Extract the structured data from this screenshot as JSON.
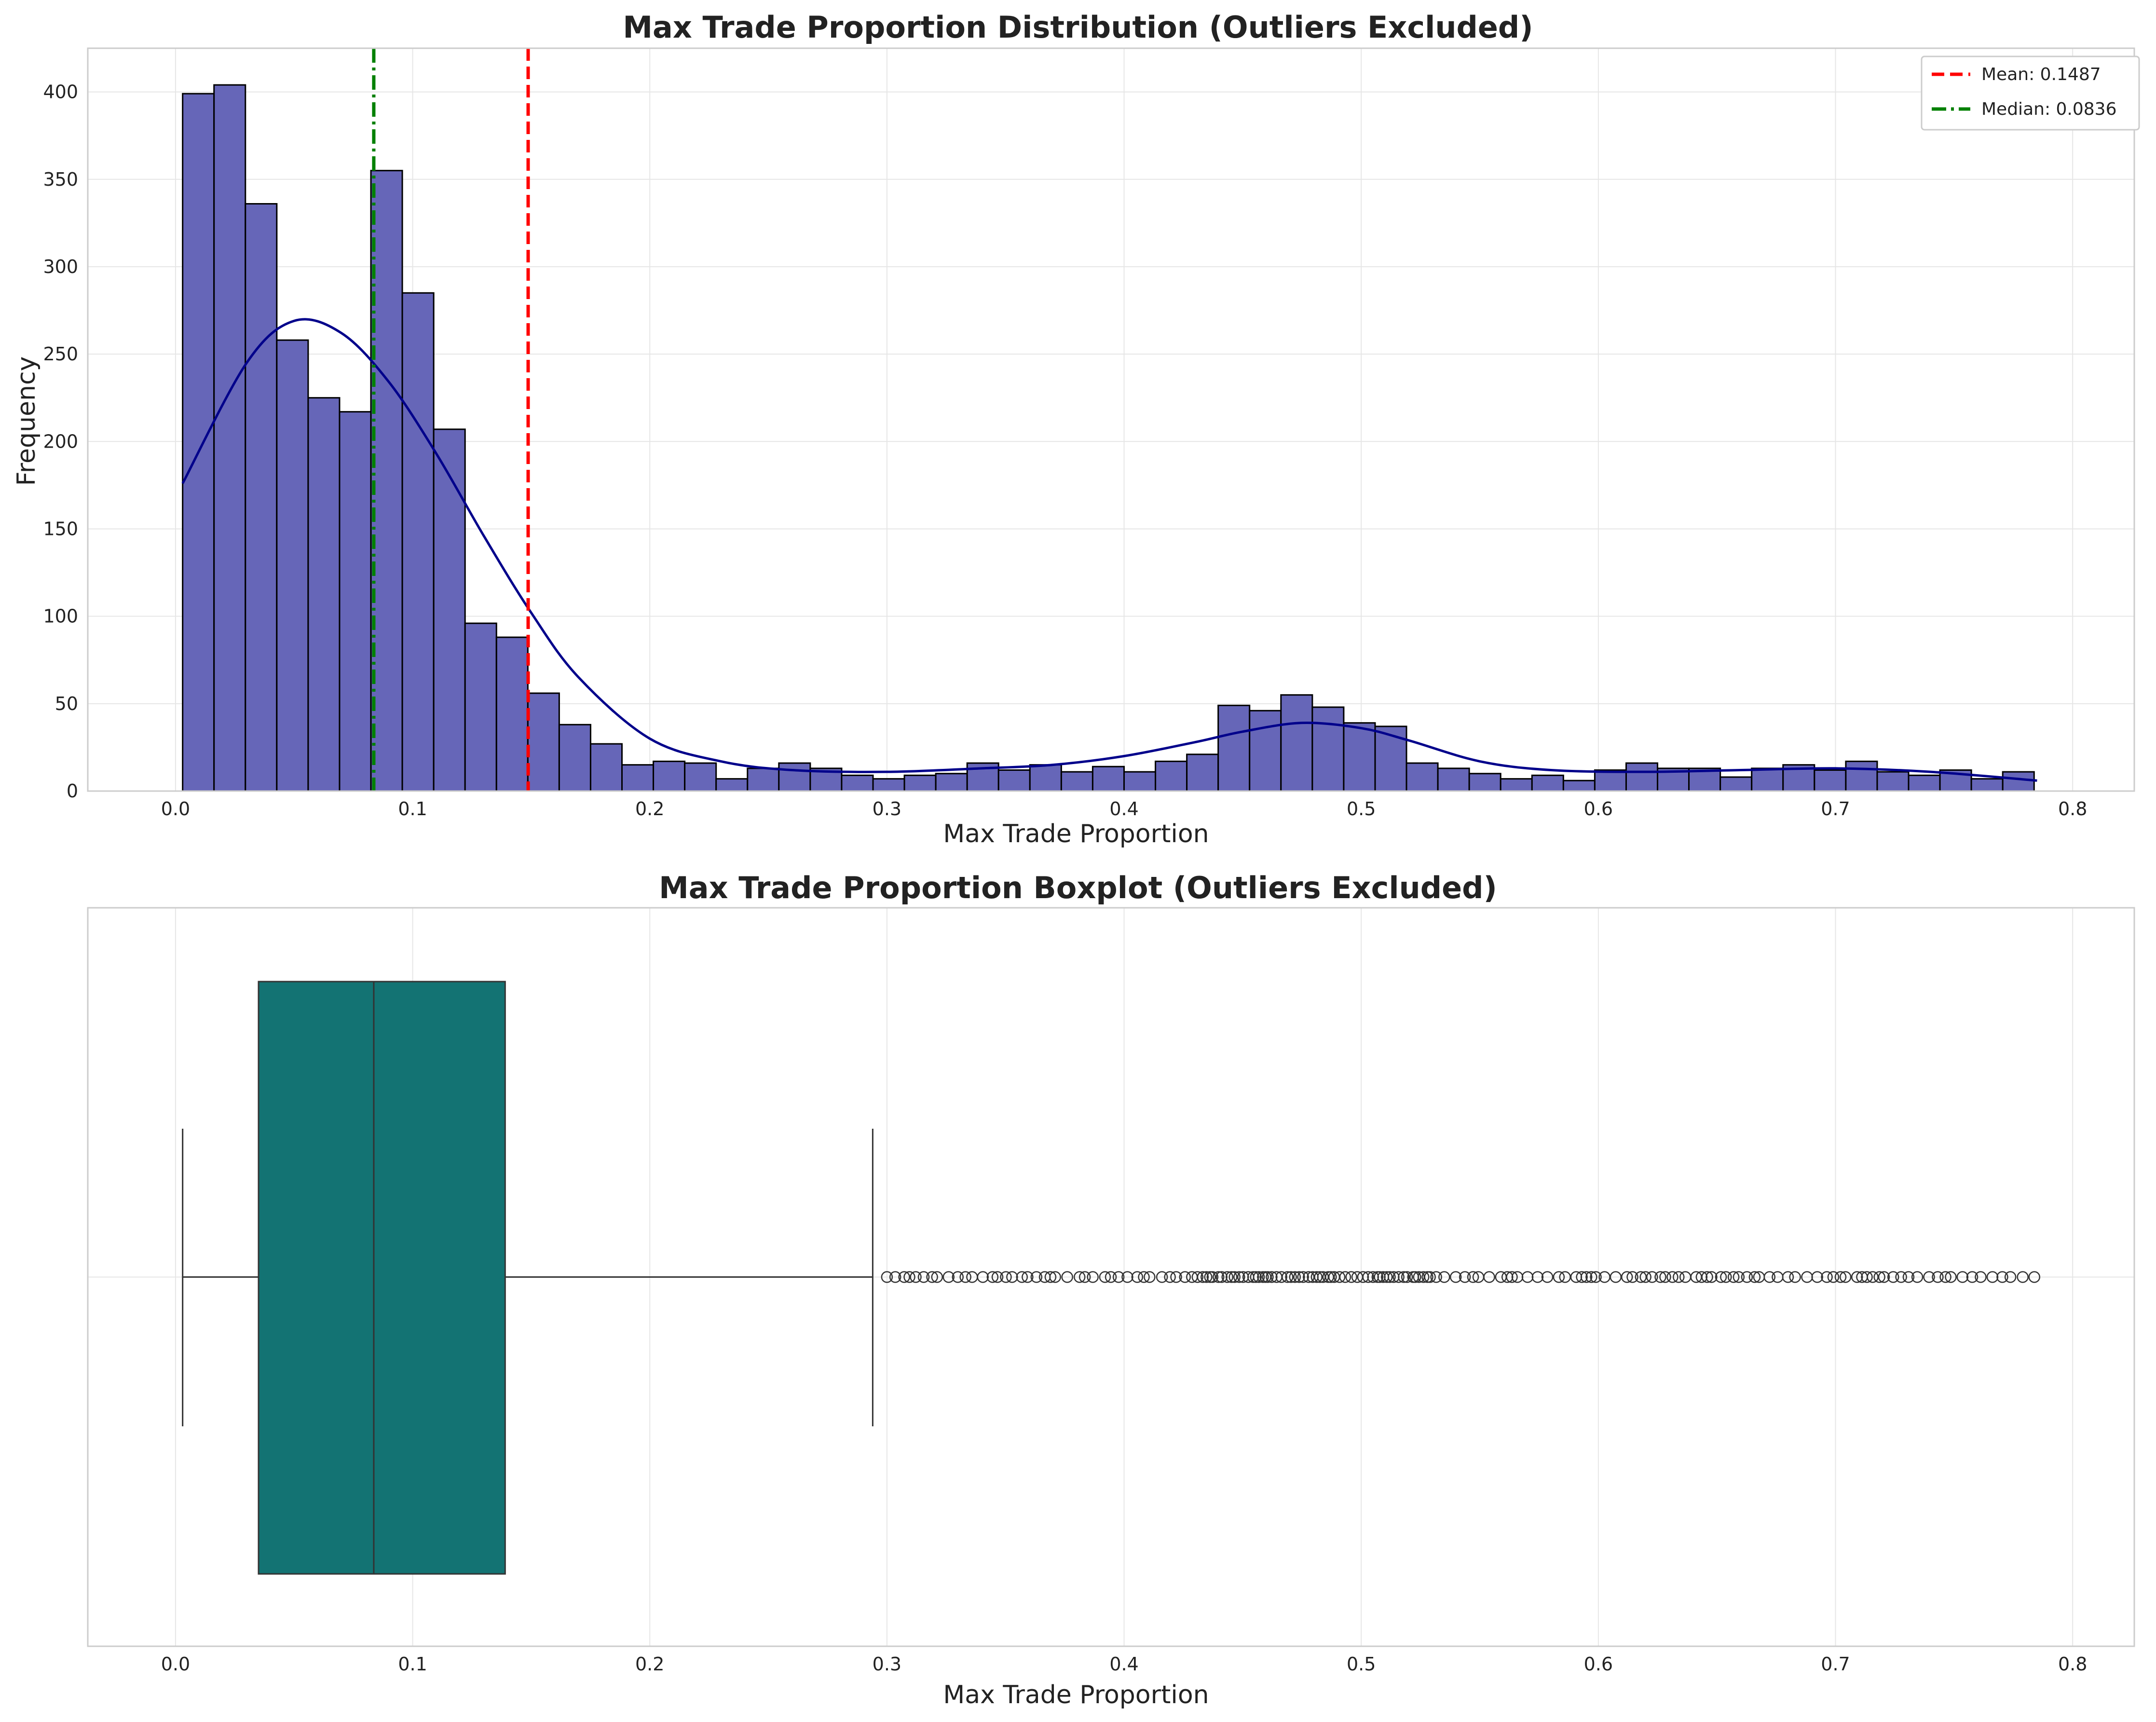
{
  "chart_data": [
    {
      "type": "histogram",
      "title": "Max Trade Proportion Distribution (Outliers Excluded)",
      "xlabel": "Max Trade Proportion",
      "ylabel": "Frequency",
      "xlim": [
        -0.037,
        0.826
      ],
      "ylim": [
        0,
        425
      ],
      "xticks": [
        0.0,
        0.1,
        0.2,
        0.3,
        0.4,
        0.5,
        0.6,
        0.7,
        0.8
      ],
      "xtick_labels": [
        "0.0",
        "0.1",
        "0.2",
        "0.3",
        "0.4",
        "0.5",
        "0.6",
        "0.7",
        "0.8"
      ],
      "yticks": [
        0,
        50,
        100,
        150,
        200,
        250,
        300,
        350,
        400
      ],
      "ytick_labels": [
        "0",
        "50",
        "100",
        "150",
        "200",
        "250",
        "300",
        "350",
        "400"
      ],
      "grid": true,
      "bins": {
        "start": 0.003,
        "width": 0.013233,
        "counts": [
          399,
          404,
          336,
          258,
          225,
          217,
          355,
          285,
          207,
          96,
          88,
          56,
          38,
          27,
          15,
          17,
          16,
          7,
          13,
          16,
          13,
          9,
          7,
          9,
          10,
          16,
          12,
          15,
          11,
          14,
          11,
          17,
          21,
          49,
          46,
          55,
          48,
          39,
          37,
          16,
          13,
          10,
          7,
          9,
          6,
          12,
          16,
          13,
          13,
          8,
          13,
          15,
          12,
          17,
          11,
          9,
          12,
          7,
          11
        ]
      },
      "kde": {
        "x": [
          0.003,
          0.03,
          0.05,
          0.07,
          0.09,
          0.11,
          0.13,
          0.15,
          0.17,
          0.2,
          0.23,
          0.26,
          0.3,
          0.34,
          0.37,
          0.4,
          0.43,
          0.45,
          0.475,
          0.5,
          0.52,
          0.55,
          0.58,
          0.62,
          0.66,
          0.7,
          0.74,
          0.785
        ],
        "y": [
          176,
          245,
          269,
          262,
          234,
          193,
          146,
          102,
          65,
          30,
          17,
          12,
          11,
          13,
          15,
          20,
          28,
          34,
          39,
          36,
          29,
          17,
          12,
          11,
          12,
          13,
          11,
          6
        ]
      },
      "reference_lines": [
        {
          "label": "Mean: 0.1487",
          "value": 0.1487,
          "color": "#ff0000",
          "style": "dashed"
        },
        {
          "label": "Median: 0.0836",
          "value": 0.0836,
          "color": "#008000",
          "style": "dashdot"
        }
      ],
      "legend_position": "top-right",
      "bar_color": "#6666b8",
      "bar_edge_color": "#000000",
      "kde_color": "#00008b"
    },
    {
      "type": "boxplot",
      "title": "Max Trade Proportion Boxplot (Outliers Excluded)",
      "xlabel": "Max Trade Proportion",
      "xlim": [
        -0.037,
        0.826
      ],
      "xticks": [
        0.0,
        0.1,
        0.2,
        0.3,
        0.4,
        0.5,
        0.6,
        0.7,
        0.8
      ],
      "xtick_labels": [
        "0.0",
        "0.1",
        "0.2",
        "0.3",
        "0.4",
        "0.5",
        "0.6",
        "0.7",
        "0.8"
      ],
      "grid": true,
      "whisker_low": 0.003,
      "q1": 0.035,
      "median": 0.0836,
      "q3": 0.139,
      "whisker_high": 0.294,
      "outliers_range": [
        0.3,
        0.785
      ],
      "box_color": "#137373"
    }
  ]
}
